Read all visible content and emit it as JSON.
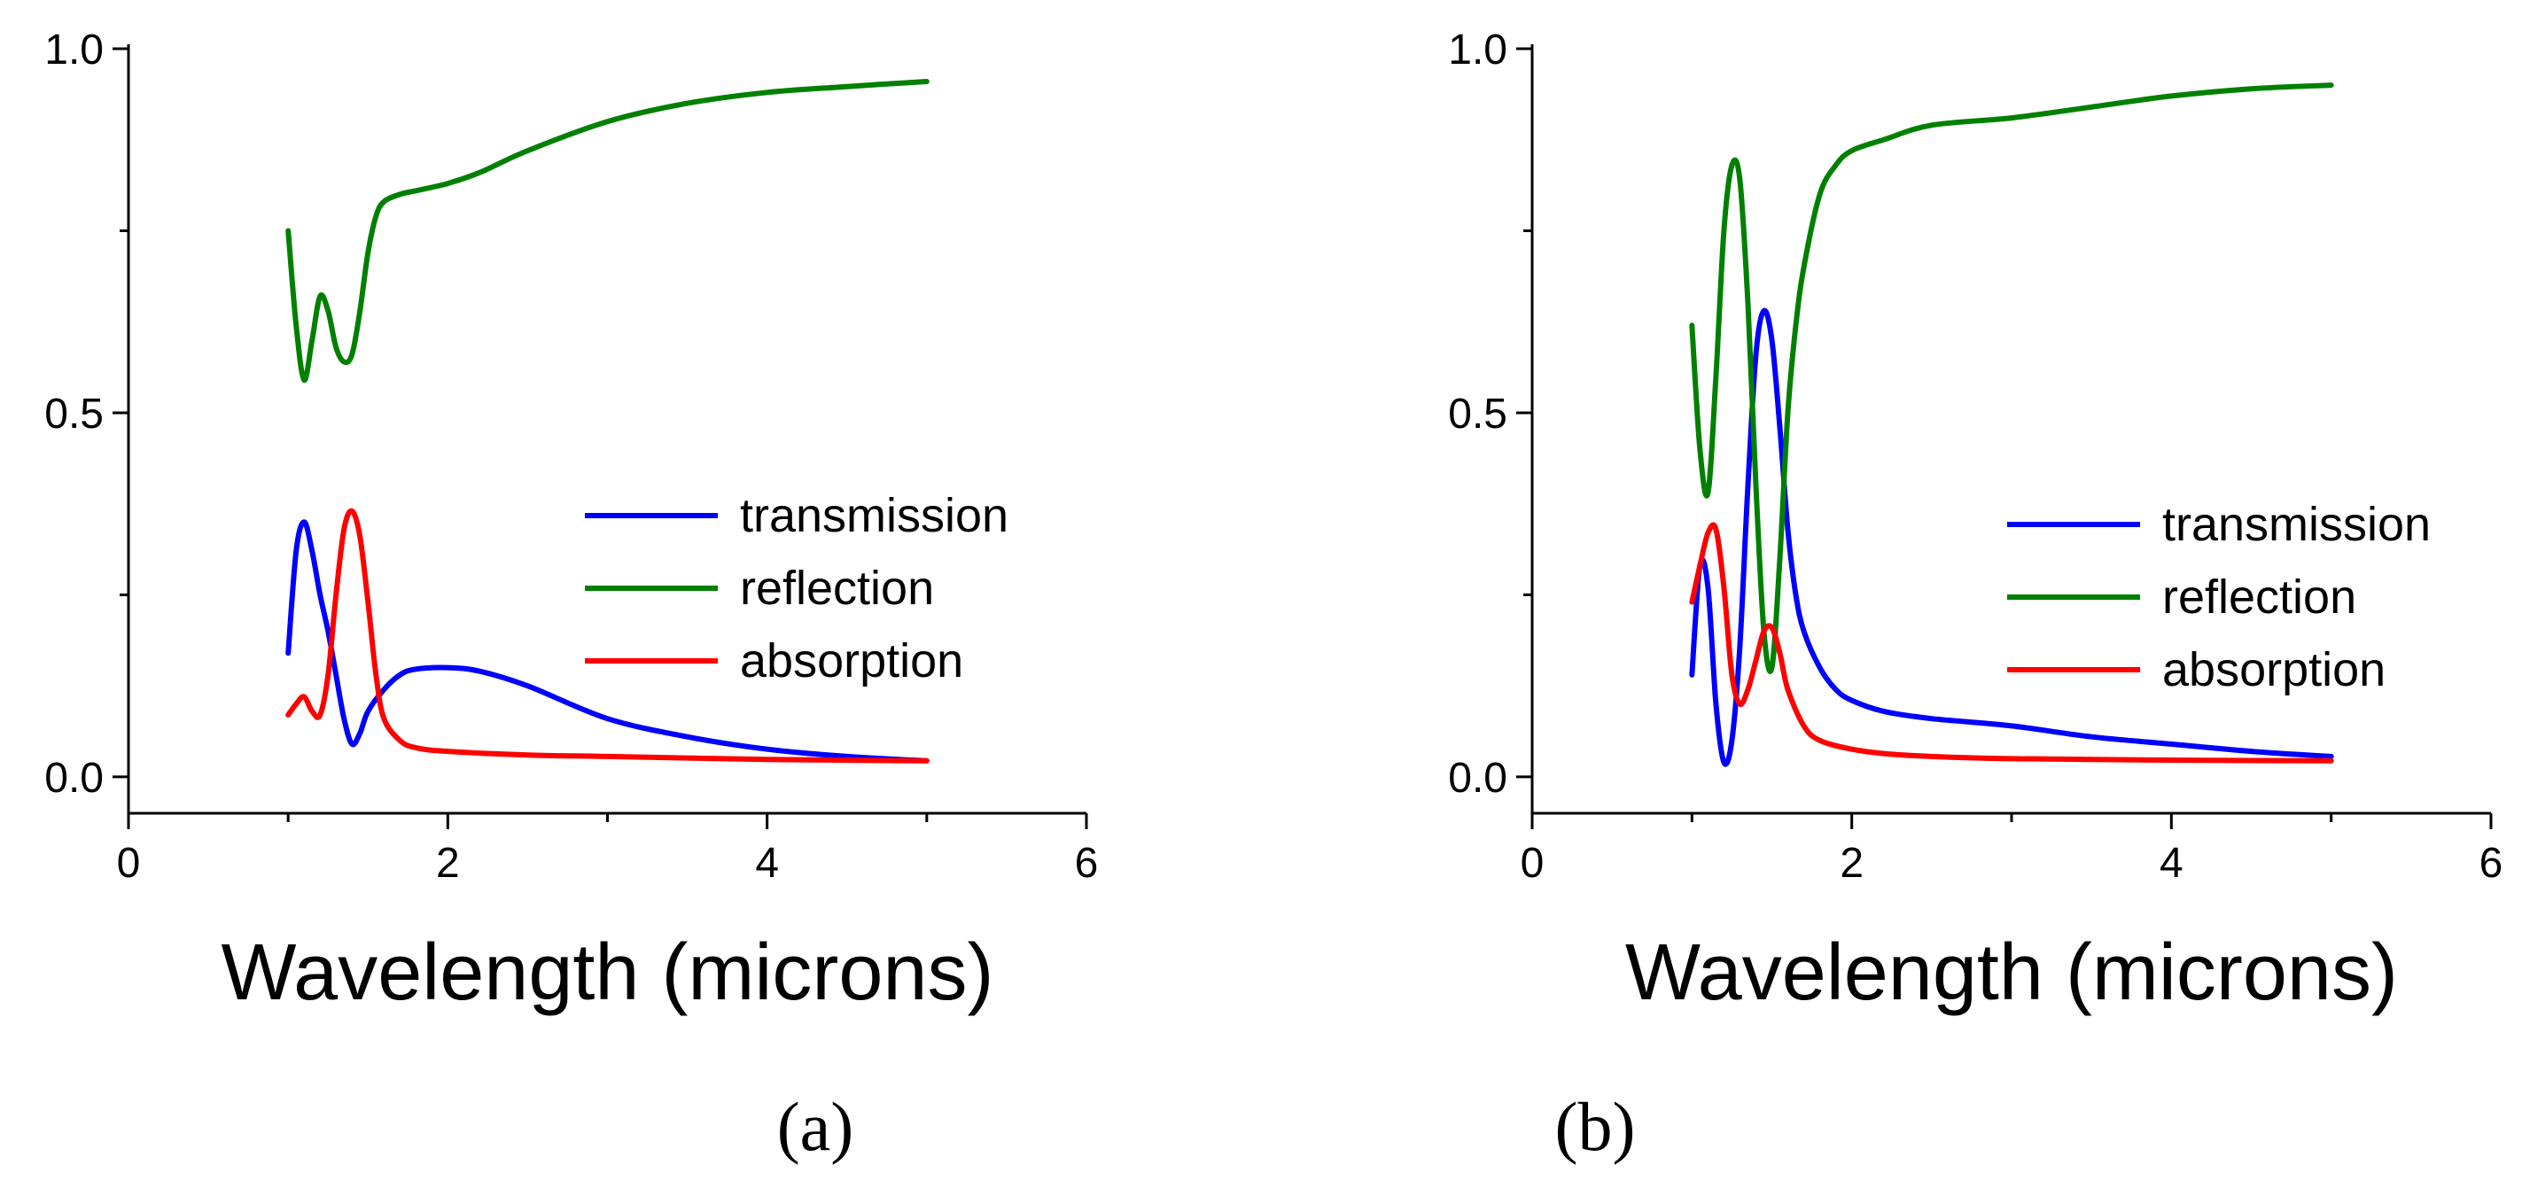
{
  "chart_data": [
    {
      "type": "line",
      "panel_label": "(a)",
      "xlabel": "Wavelength (microns)",
      "ylabel": "",
      "xlim": [
        0,
        6
      ],
      "ylim": [
        -0.05,
        1.0
      ],
      "xticks": [
        0,
        2,
        4,
        6
      ],
      "xtick_labels": [
        "0",
        "2",
        "4",
        "6"
      ],
      "yticks": [
        0.0,
        0.5,
        1.0
      ],
      "ytick_labels": [
        "0.0",
        "0.5",
        "1.0"
      ],
      "legend_position": "center-right",
      "series": [
        {
          "name": "transmission",
          "color": "#0000ff",
          "x": [
            1.0,
            1.05,
            1.1,
            1.15,
            1.2,
            1.25,
            1.3,
            1.35,
            1.4,
            1.45,
            1.5,
            1.6,
            1.7,
            1.8,
            2.0,
            2.2,
            2.5,
            3.0,
            3.5,
            4.0,
            4.5,
            5.0
          ],
          "y": [
            0.17,
            0.31,
            0.35,
            0.31,
            0.25,
            0.2,
            0.14,
            0.08,
            0.045,
            0.06,
            0.09,
            0.12,
            0.14,
            0.148,
            0.15,
            0.145,
            0.125,
            0.08,
            0.055,
            0.038,
            0.028,
            0.022
          ]
        },
        {
          "name": "reflection",
          "color": "#008000",
          "x": [
            1.0,
            1.05,
            1.1,
            1.15,
            1.2,
            1.25,
            1.3,
            1.35,
            1.4,
            1.45,
            1.5,
            1.55,
            1.6,
            1.7,
            1.8,
            2.0,
            2.2,
            2.5,
            3.0,
            3.5,
            4.0,
            4.5,
            5.0
          ],
          "y": [
            0.75,
            0.62,
            0.545,
            0.6,
            0.66,
            0.64,
            0.59,
            0.57,
            0.58,
            0.64,
            0.72,
            0.77,
            0.79,
            0.8,
            0.805,
            0.815,
            0.83,
            0.86,
            0.9,
            0.925,
            0.94,
            0.948,
            0.955
          ]
        },
        {
          "name": "absorption",
          "color": "#ff0000",
          "x": [
            1.0,
            1.05,
            1.1,
            1.15,
            1.2,
            1.25,
            1.3,
            1.35,
            1.4,
            1.45,
            1.5,
            1.55,
            1.6,
            1.7,
            1.8,
            2.0,
            2.5,
            3.0,
            4.0,
            5.0
          ],
          "y": [
            0.085,
            0.1,
            0.11,
            0.09,
            0.085,
            0.14,
            0.25,
            0.34,
            0.365,
            0.33,
            0.24,
            0.14,
            0.08,
            0.05,
            0.04,
            0.035,
            0.03,
            0.028,
            0.024,
            0.022
          ]
        }
      ]
    },
    {
      "type": "line",
      "panel_label": "(b)",
      "xlabel": "Wavelength (microns)",
      "ylabel": "",
      "xlim": [
        0,
        6
      ],
      "ylim": [
        -0.05,
        1.0
      ],
      "xticks": [
        0,
        2,
        4,
        6
      ],
      "xtick_labels": [
        "0",
        "2",
        "4",
        "6"
      ],
      "yticks": [
        0.0,
        0.5,
        1.0
      ],
      "ytick_labels": [
        "0.0",
        "0.5",
        "1.0"
      ],
      "legend_position": "center-right",
      "series": [
        {
          "name": "transmission",
          "color": "#0000ff",
          "x": [
            1.0,
            1.05,
            1.1,
            1.15,
            1.2,
            1.25,
            1.3,
            1.35,
            1.4,
            1.45,
            1.5,
            1.55,
            1.6,
            1.65,
            1.7,
            1.8,
            1.9,
            2.0,
            2.2,
            2.5,
            3.0,
            3.5,
            4.0,
            4.5,
            5.0
          ],
          "y": [
            0.14,
            0.29,
            0.26,
            0.1,
            0.02,
            0.05,
            0.18,
            0.4,
            0.58,
            0.64,
            0.6,
            0.48,
            0.34,
            0.25,
            0.2,
            0.15,
            0.12,
            0.105,
            0.09,
            0.08,
            0.07,
            0.055,
            0.045,
            0.035,
            0.028
          ]
        },
        {
          "name": "reflection",
          "color": "#008000",
          "x": [
            1.0,
            1.05,
            1.1,
            1.15,
            1.2,
            1.25,
            1.3,
            1.35,
            1.4,
            1.45,
            1.5,
            1.55,
            1.6,
            1.65,
            1.7,
            1.8,
            1.9,
            2.0,
            2.2,
            2.5,
            3.0,
            3.5,
            4.0,
            4.5,
            5.0
          ],
          "y": [
            0.62,
            0.45,
            0.39,
            0.55,
            0.75,
            0.84,
            0.82,
            0.65,
            0.4,
            0.2,
            0.15,
            0.3,
            0.5,
            0.62,
            0.7,
            0.8,
            0.84,
            0.86,
            0.875,
            0.895,
            0.905,
            0.92,
            0.935,
            0.945,
            0.95
          ]
        },
        {
          "name": "absorption",
          "color": "#ff0000",
          "x": [
            1.0,
            1.05,
            1.1,
            1.15,
            1.2,
            1.25,
            1.3,
            1.35,
            1.4,
            1.45,
            1.5,
            1.55,
            1.6,
            1.7,
            1.8,
            2.0,
            2.2,
            2.5,
            3.0,
            4.0,
            5.0
          ],
          "y": [
            0.24,
            0.29,
            0.335,
            0.34,
            0.26,
            0.14,
            0.1,
            0.12,
            0.16,
            0.2,
            0.205,
            0.17,
            0.12,
            0.07,
            0.05,
            0.038,
            0.032,
            0.028,
            0.025,
            0.023,
            0.022
          ]
        }
      ]
    }
  ]
}
